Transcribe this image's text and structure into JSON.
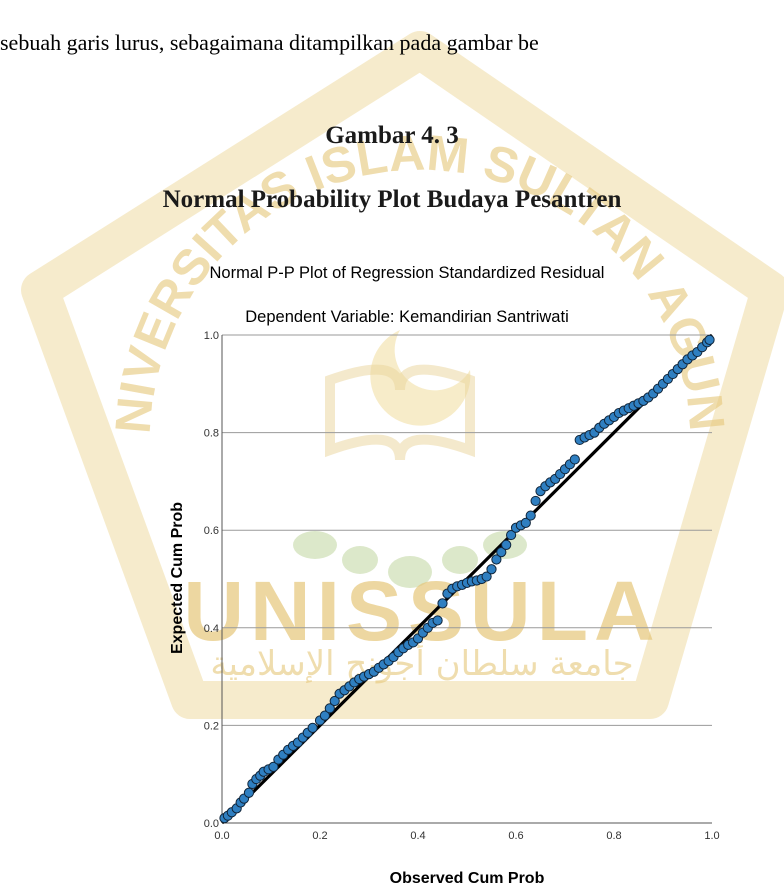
{
  "document": {
    "text_line": "sebuah garis lurus, sebagaimana ditampilkan pada gambar be",
    "figure_number": "Gambar 4. 3",
    "figure_caption": "Normal Probability Plot Budaya Pesantren"
  },
  "watermark": {
    "text_top": "UNIVERSITAS ISLAM SULTAN AGUNG",
    "text_main": "UNISSULA",
    "text_arabic": "جامعة سلطان أجونج الإسلامية",
    "color": "#e6c77a",
    "accent_color": "#c5d9a8"
  },
  "chart_data": {
    "type": "scatter",
    "title": "Normal P-P Plot of Regression Standardized Residual",
    "subtitle": "Dependent Variable: Kemandirian Santriwati",
    "xlabel": "Observed Cum Prob",
    "ylabel": "Expected Cum Prob",
    "xlim": [
      0,
      1
    ],
    "ylim": [
      0,
      1
    ],
    "x_ticks": [
      "0.0",
      "0.2",
      "0.4",
      "0.6",
      "0.8",
      "1.0"
    ],
    "y_ticks": [
      "0.0",
      "0.2",
      "0.4",
      "0.6",
      "0.8",
      "1.0"
    ],
    "grid": "horizontal",
    "reference_line": [
      [
        0,
        0
      ],
      [
        1,
        1
      ]
    ],
    "point_color": "#2f7fc1",
    "line_color": "#000000",
    "points": [
      [
        0.005,
        0.01
      ],
      [
        0.012,
        0.015
      ],
      [
        0.02,
        0.022
      ],
      [
        0.03,
        0.03
      ],
      [
        0.038,
        0.042
      ],
      [
        0.045,
        0.05
      ],
      [
        0.055,
        0.062
      ],
      [
        0.062,
        0.08
      ],
      [
        0.07,
        0.09
      ],
      [
        0.078,
        0.097
      ],
      [
        0.085,
        0.105
      ],
      [
        0.095,
        0.11
      ],
      [
        0.105,
        0.115
      ],
      [
        0.115,
        0.13
      ],
      [
        0.125,
        0.14
      ],
      [
        0.135,
        0.15
      ],
      [
        0.145,
        0.158
      ],
      [
        0.155,
        0.165
      ],
      [
        0.165,
        0.175
      ],
      [
        0.175,
        0.185
      ],
      [
        0.185,
        0.195
      ],
      [
        0.2,
        0.21
      ],
      [
        0.21,
        0.22
      ],
      [
        0.22,
        0.235
      ],
      [
        0.23,
        0.25
      ],
      [
        0.24,
        0.265
      ],
      [
        0.25,
        0.272
      ],
      [
        0.26,
        0.28
      ],
      [
        0.27,
        0.288
      ],
      [
        0.28,
        0.295
      ],
      [
        0.29,
        0.3
      ],
      [
        0.3,
        0.305
      ],
      [
        0.31,
        0.31
      ],
      [
        0.32,
        0.318
      ],
      [
        0.33,
        0.325
      ],
      [
        0.34,
        0.332
      ],
      [
        0.35,
        0.34
      ],
      [
        0.36,
        0.35
      ],
      [
        0.37,
        0.358
      ],
      [
        0.38,
        0.365
      ],
      [
        0.39,
        0.37
      ],
      [
        0.4,
        0.378
      ],
      [
        0.41,
        0.39
      ],
      [
        0.42,
        0.4
      ],
      [
        0.43,
        0.41
      ],
      [
        0.44,
        0.415
      ],
      [
        0.45,
        0.45
      ],
      [
        0.46,
        0.47
      ],
      [
        0.47,
        0.48
      ],
      [
        0.48,
        0.485
      ],
      [
        0.49,
        0.488
      ],
      [
        0.5,
        0.492
      ],
      [
        0.51,
        0.495
      ],
      [
        0.52,
        0.497
      ],
      [
        0.53,
        0.5
      ],
      [
        0.54,
        0.505
      ],
      [
        0.55,
        0.52
      ],
      [
        0.56,
        0.54
      ],
      [
        0.57,
        0.555
      ],
      [
        0.58,
        0.57
      ],
      [
        0.59,
        0.59
      ],
      [
        0.6,
        0.605
      ],
      [
        0.61,
        0.61
      ],
      [
        0.62,
        0.615
      ],
      [
        0.63,
        0.63
      ],
      [
        0.64,
        0.66
      ],
      [
        0.65,
        0.68
      ],
      [
        0.66,
        0.69
      ],
      [
        0.67,
        0.698
      ],
      [
        0.68,
        0.705
      ],
      [
        0.69,
        0.715
      ],
      [
        0.7,
        0.725
      ],
      [
        0.71,
        0.735
      ],
      [
        0.72,
        0.745
      ],
      [
        0.73,
        0.785
      ],
      [
        0.74,
        0.79
      ],
      [
        0.75,
        0.795
      ],
      [
        0.76,
        0.8
      ],
      [
        0.77,
        0.81
      ],
      [
        0.78,
        0.818
      ],
      [
        0.79,
        0.825
      ],
      [
        0.8,
        0.832
      ],
      [
        0.81,
        0.84
      ],
      [
        0.82,
        0.845
      ],
      [
        0.83,
        0.85
      ],
      [
        0.84,
        0.855
      ],
      [
        0.85,
        0.86
      ],
      [
        0.86,
        0.865
      ],
      [
        0.87,
        0.872
      ],
      [
        0.88,
        0.88
      ],
      [
        0.89,
        0.89
      ],
      [
        0.9,
        0.9
      ],
      [
        0.91,
        0.91
      ],
      [
        0.92,
        0.92
      ],
      [
        0.93,
        0.93
      ],
      [
        0.94,
        0.94
      ],
      [
        0.95,
        0.95
      ],
      [
        0.96,
        0.958
      ],
      [
        0.97,
        0.965
      ],
      [
        0.98,
        0.975
      ],
      [
        0.99,
        0.985
      ],
      [
        0.995,
        0.99
      ]
    ]
  }
}
